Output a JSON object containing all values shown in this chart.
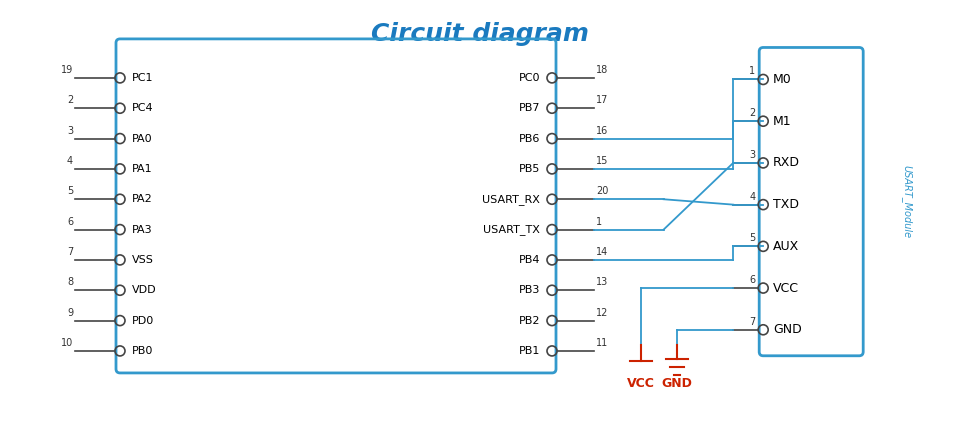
{
  "title": "Circuit diagram",
  "title_color": "#1a7abf",
  "title_fontsize": 18,
  "bg_color": "#ffffff",
  "box_color": "#3399cc",
  "line_color": "#3399cc",
  "dark_color": "#444444",
  "red_color": "#cc2200",
  "left_pins": [
    {
      "num": "19",
      "label": "PC1"
    },
    {
      "num": "2",
      "label": "PC4"
    },
    {
      "num": "3",
      "label": "PA0"
    },
    {
      "num": "4",
      "label": "PA1"
    },
    {
      "num": "5",
      "label": "PA2"
    },
    {
      "num": "6",
      "label": "PA3"
    },
    {
      "num": "7",
      "label": "VSS"
    },
    {
      "num": "8",
      "label": "VDD"
    },
    {
      "num": "9",
      "label": "PD0"
    },
    {
      "num": "10",
      "label": "PB0"
    }
  ],
  "right_pins": [
    {
      "num": "18",
      "label": "PC0"
    },
    {
      "num": "17",
      "label": "PB7"
    },
    {
      "num": "16",
      "label": "PB6"
    },
    {
      "num": "15",
      "label": "PB5"
    },
    {
      "num": "20",
      "label": "USART_RX"
    },
    {
      "num": "1",
      "label": "USART_TX"
    },
    {
      "num": "14",
      "label": "PB4"
    },
    {
      "num": "13",
      "label": "PB3"
    },
    {
      "num": "12",
      "label": "PB2"
    },
    {
      "num": "11",
      "label": "PB1"
    }
  ],
  "module_pins": [
    {
      "num": "1",
      "label": "M0"
    },
    {
      "num": "2",
      "label": "M1"
    },
    {
      "num": "3",
      "label": "RXD"
    },
    {
      "num": "4",
      "label": "TXD"
    },
    {
      "num": "5",
      "label": "AUX"
    },
    {
      "num": "6",
      "label": "VCC"
    },
    {
      "num": "7",
      "label": "GND"
    }
  ],
  "fig_w": 9.6,
  "fig_h": 4.29,
  "dpi": 100
}
